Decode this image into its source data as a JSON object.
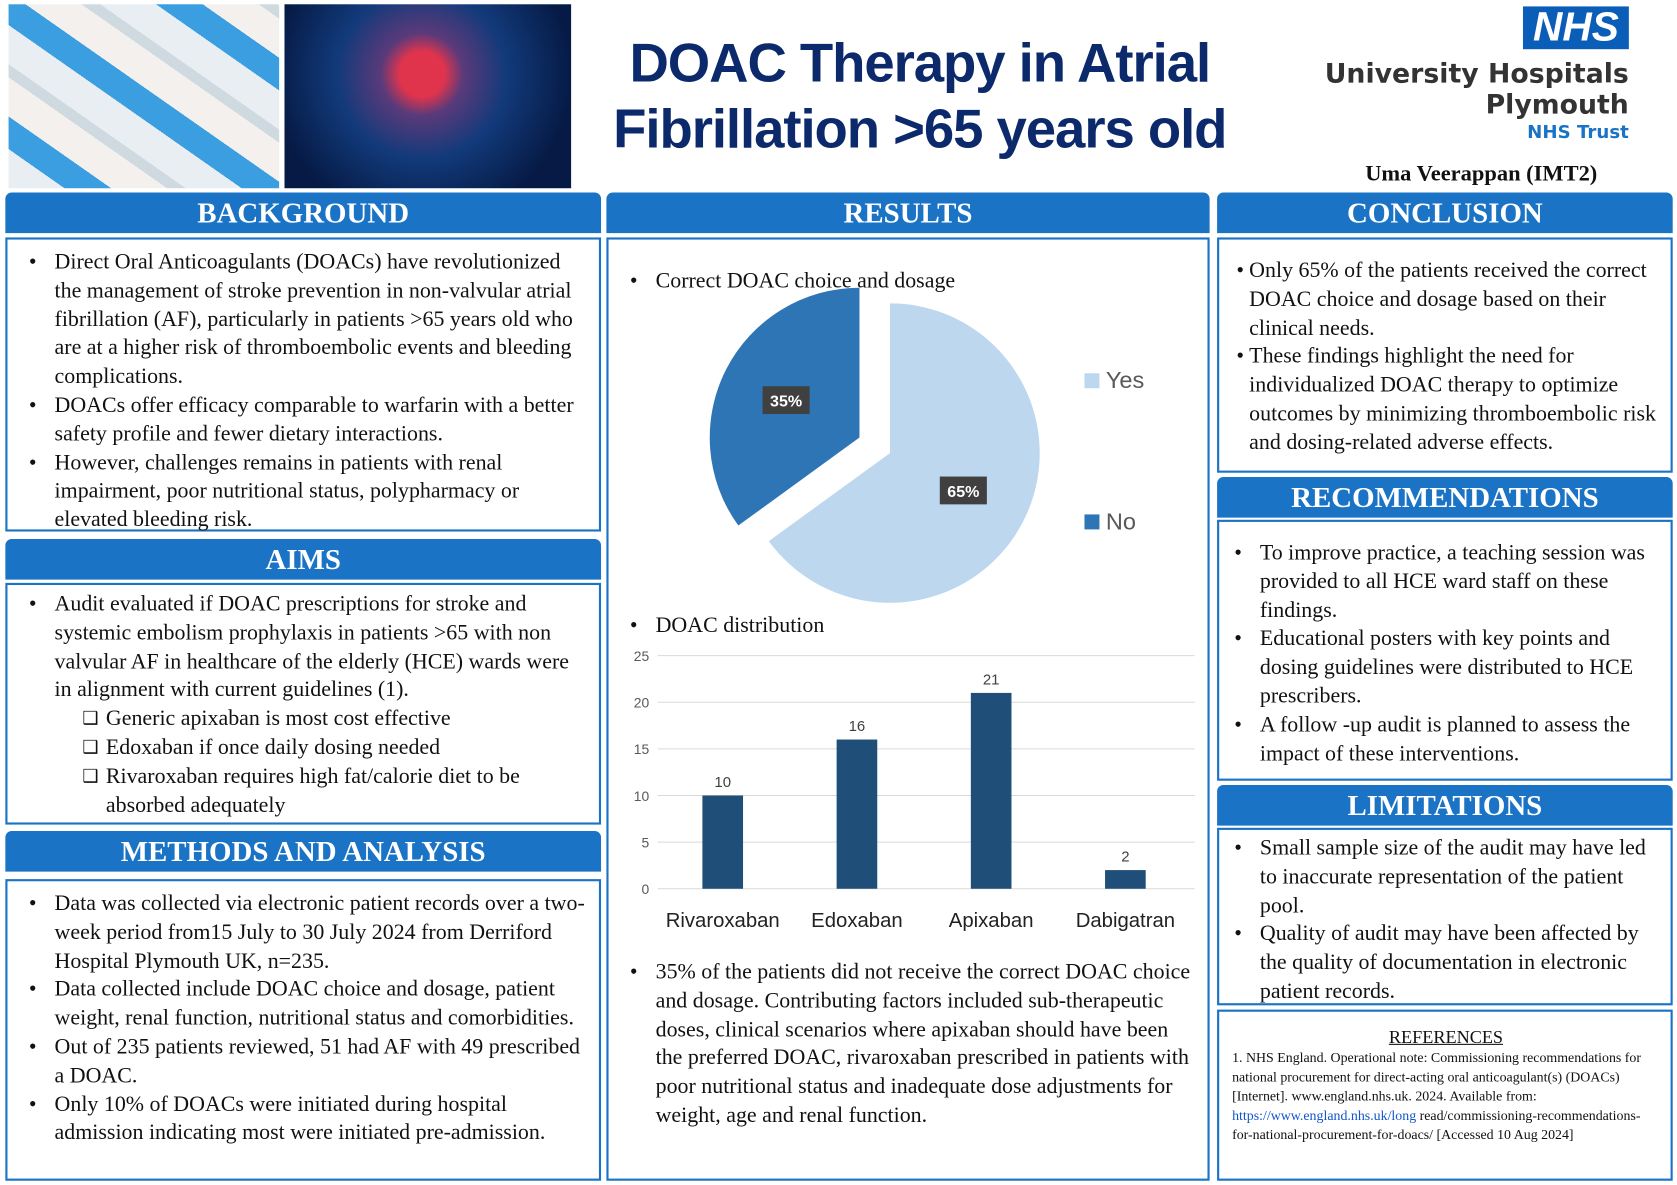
{
  "header": {
    "title_line1": "DOAC Therapy in Atrial",
    "title_line2": "Fibrillation >65 years old",
    "logo_nhs": "NHS",
    "logo_org1": "University Hospitals",
    "logo_org2": "Plymouth",
    "logo_org3": "NHS Trust",
    "author": "Uma Veerappan (IMT2)"
  },
  "background": {
    "title": "BACKGROUND",
    "items": [
      "Direct Oral Anticoagulants (DOACs) have revolutionized the management of stroke prevention in non-valvular atrial fibrillation (AF), particularly in patients >65 years old who are at a higher risk of thromboembolic events and bleeding complications.",
      " DOACs offer efficacy comparable to warfarin with a better safety profile and fewer dietary interactions.",
      "However, challenges remains in patients with renal impairment, poor nutritional status, polypharmacy or elevated bleeding risk."
    ]
  },
  "aims": {
    "title": "AIMS",
    "items": [
      "Audit evaluated if DOAC prescriptions for stroke and systemic embolism prophylaxis in patients >65 with non valvular AF in healthcare of the elderly (HCE) wards were in alignment with current guidelines (1)."
    ],
    "sub": [
      "Generic apixaban is most cost effective",
      "Edoxaban if once daily dosing needed",
      "Rivaroxaban requires high fat/calorie diet to be absorbed adequately"
    ]
  },
  "methods": {
    "title": "METHODS AND ANALYSIS",
    "items": [
      "Data was collected via electronic patient records over a two-week period from15 July to 30 July 2024 from Derriford Hospital Plymouth UK, n=235.",
      "Data collected include DOAC choice and dosage, patient weight, renal function, nutritional status and comorbidities.",
      "Out of 235 patients reviewed, 51 had AF with 49 prescribed a DOAC.",
      "Only 10% of DOACs were initiated during hospital admission indicating most were initiated pre-admission."
    ]
  },
  "results": {
    "title": "RESULTS",
    "pie_heading": "Correct DOAC choice and dosage",
    "bar_heading": "DOAC distribution",
    "summary": "35% of the patients did not receive the correct DOAC choice and dosage. Contributing factors included sub-therapeutic doses, clinical scenarios where apixaban should have been the preferred DOAC, rivaroxaban prescribed in patients with poor nutritional status and inadequate dose adjustments for weight, age and renal function."
  },
  "chart_data": [
    {
      "type": "pie",
      "title": "Correct DOAC choice and dosage",
      "categories": [
        "Yes",
        "No"
      ],
      "values": [
        65,
        35
      ],
      "labels": [
        "65%",
        "35%"
      ],
      "colors": [
        "#bdd7ee",
        "#2e75b6"
      ],
      "legend": "right"
    },
    {
      "type": "bar",
      "title": "DOAC distribution",
      "categories": [
        "Rivaroxaban",
        "Edoxaban",
        "Apixaban",
        "Dabigatran"
      ],
      "values": [
        10,
        16,
        21,
        2
      ],
      "ylim": [
        0,
        25
      ],
      "yticks": [
        "0",
        "5",
        "10",
        "15",
        "20",
        "25"
      ],
      "grid": true,
      "color": "#1f4e79"
    }
  ],
  "conclusion": {
    "title": "CONCLUSION",
    "items": [
      "Only 65% of the patients received the correct DOAC choice and dosage based on their clinical needs.",
      "These findings highlight the need for individualized DOAC therapy to optimize outcomes by minimizing thromboembolic risk and dosing-related adverse effects."
    ]
  },
  "recommendations": {
    "title": "RECOMMENDATIONS",
    "items": [
      "To improve practice, a teaching session was provided to all HCE ward staff on these findings.",
      "Educational posters with key points and dosing guidelines were distributed to HCE prescribers.",
      "A follow -up audit is planned to assess the impact of these interventions."
    ]
  },
  "limitations": {
    "title": "LIMITATIONS",
    "items": [
      "Small sample size of the audit may have led to inaccurate representation of the patient pool.",
      "Quality of audit may have been affected by the quality of documentation in electronic patient records."
    ]
  },
  "references": {
    "title": "REFERENCES",
    "text": "1.  NHS England. Operational note: Commissioning recommendations for national procurement for direct-acting oral anticoagulant(s) (DOACs) [Internet]. www.england.nhs.uk. 2024. Available from: ",
    "link": "https://www.england.nhs.uk/long",
    "tail": " read/commissioning-recommendations-for-national-procurement-for-doacs/ [Accessed 10 Aug 2024]"
  }
}
